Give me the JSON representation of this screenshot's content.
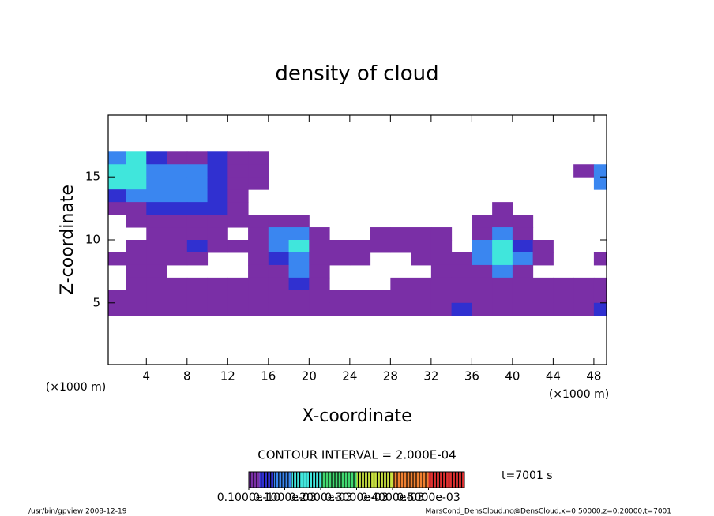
{
  "chart_data": {
    "type": "contour",
    "title": "density of cloud",
    "x_label": "X-coordinate",
    "y_label": "Z-coordinate",
    "x_unit": "(×1000 m)",
    "y_unit": "(×1000 m)",
    "contour_interval": "CONTOUR INTERVAL = 2.000E-04",
    "time_label": "t=7001 s",
    "footer_left": "/usr/bin/gpview   2008-12-19",
    "footer_right": "MarsCond_DensCloud.nc@DensCloud,x=0:50000,z=0:20000,t=7001",
    "xlim": [
      0.25,
      49.25
    ],
    "ylim": [
      0.1,
      19.9
    ],
    "xticks": [
      4,
      8,
      12,
      16,
      20,
      24,
      28,
      32,
      36,
      40,
      44,
      48
    ],
    "yticks": [
      5,
      10,
      15
    ],
    "x": [
      1,
      3,
      5,
      7,
      9,
      11,
      13,
      15,
      17,
      19,
      21,
      23,
      25,
      27,
      29,
      31,
      33,
      35,
      37,
      39,
      41,
      43,
      45,
      47,
      49
    ],
    "z": [
      16.5,
      15.5,
      14.5,
      13.5,
      12.5,
      11.5,
      10.5,
      9.5,
      8.5,
      7.5,
      6.5,
      5.5,
      4.5
    ],
    "values": [
      [
        0.0001,
        0.00015,
        6e-05,
        2e-05,
        2e-05,
        6e-05,
        2e-05,
        2e-05,
        0,
        0,
        0,
        0,
        0,
        0,
        0,
        0,
        0,
        0,
        0,
        0,
        0,
        0,
        0,
        0,
        0
      ],
      [
        0.00015,
        0.00015,
        0.0001,
        0.0001,
        0.0001,
        6e-05,
        2e-05,
        2e-05,
        0,
        0,
        0,
        0,
        0,
        0,
        0,
        0,
        0,
        0,
        0,
        0,
        0,
        0,
        0,
        2e-05,
        0.0001
      ],
      [
        0.00015,
        0.00015,
        0.0001,
        0.0001,
        0.0001,
        6e-05,
        2e-05,
        2e-05,
        0,
        0,
        0,
        0,
        0,
        0,
        0,
        0,
        0,
        0,
        0,
        0,
        0,
        0,
        0,
        0,
        0.0001
      ],
      [
        6e-05,
        0.0001,
        0.0001,
        0.0001,
        0.0001,
        6e-05,
        2e-05,
        0,
        0,
        0,
        0,
        0,
        0,
        0,
        0,
        0,
        0,
        0,
        0,
        0,
        0,
        0,
        0,
        0,
        0
      ],
      [
        2e-05,
        2e-05,
        6e-05,
        6e-05,
        6e-05,
        6e-05,
        2e-05,
        0,
        0,
        0,
        0,
        0,
        0,
        0,
        0,
        0,
        0,
        0,
        0,
        2e-05,
        0,
        0,
        0,
        0,
        0
      ],
      [
        0,
        2e-05,
        2e-05,
        2e-05,
        2e-05,
        2e-05,
        2e-05,
        2e-05,
        2e-05,
        2e-05,
        0,
        0,
        0,
        0,
        0,
        0,
        0,
        0,
        2e-05,
        2e-05,
        2e-05,
        0,
        0,
        0,
        0
      ],
      [
        0,
        0,
        2e-05,
        2e-05,
        2e-05,
        2e-05,
        0,
        2e-05,
        0.0001,
        0.0001,
        2e-05,
        0,
        0,
        2e-05,
        2e-05,
        2e-05,
        2e-05,
        0,
        2e-05,
        0.0001,
        2e-05,
        0,
        0,
        0,
        0
      ],
      [
        0,
        2e-05,
        2e-05,
        2e-05,
        6e-05,
        2e-05,
        2e-05,
        2e-05,
        0.0001,
        0.00015,
        2e-05,
        2e-05,
        2e-05,
        2e-05,
        2e-05,
        2e-05,
        2e-05,
        0,
        0.0001,
        0.00015,
        6e-05,
        2e-05,
        0,
        0,
        0
      ],
      [
        2e-05,
        2e-05,
        2e-05,
        2e-05,
        2e-05,
        0,
        0,
        2e-05,
        6e-05,
        0.0001,
        2e-05,
        2e-05,
        2e-05,
        0,
        0,
        2e-05,
        2e-05,
        2e-05,
        0.0001,
        0.00015,
        0.0001,
        2e-05,
        0,
        0,
        2e-05
      ],
      [
        0,
        2e-05,
        2e-05,
        0,
        0,
        0,
        0,
        2e-05,
        2e-05,
        0.0001,
        2e-05,
        0,
        0,
        0,
        0,
        0,
        2e-05,
        2e-05,
        2e-05,
        0.0001,
        2e-05,
        0,
        0,
        0,
        0
      ],
      [
        0,
        2e-05,
        2e-05,
        2e-05,
        2e-05,
        2e-05,
        2e-05,
        2e-05,
        2e-05,
        6e-05,
        2e-05,
        0,
        0,
        0,
        2e-05,
        2e-05,
        2e-05,
        2e-05,
        2e-05,
        2e-05,
        2e-05,
        2e-05,
        2e-05,
        2e-05,
        2e-05
      ],
      [
        2e-05,
        2e-05,
        2e-05,
        2e-05,
        2e-05,
        2e-05,
        2e-05,
        2e-05,
        2e-05,
        2e-05,
        2e-05,
        2e-05,
        2e-05,
        2e-05,
        2e-05,
        2e-05,
        2e-05,
        2e-05,
        2e-05,
        2e-05,
        2e-05,
        2e-05,
        2e-05,
        2e-05,
        2e-05
      ],
      [
        2e-05,
        2e-05,
        2e-05,
        2e-05,
        2e-05,
        2e-05,
        2e-05,
        2e-05,
        2e-05,
        2e-05,
        2e-05,
        2e-05,
        2e-05,
        2e-05,
        2e-05,
        2e-05,
        2e-05,
        6e-05,
        2e-05,
        2e-05,
        2e-05,
        2e-05,
        2e-05,
        2e-05,
        6e-05
      ]
    ],
    "colorbar": {
      "bounds": [
        0,
        1e-11,
        3e-05,
        7e-05,
        0.00012,
        0.0002,
        0.0003,
        0.0004,
        0.0005,
        0.0006
      ],
      "colors": [
        "#ffffff",
        "#7a2fa6",
        "#3030d0",
        "#3a86f0",
        "#40e6dc",
        "#40d870",
        "#c8e040",
        "#f08030",
        "#e03030"
      ],
      "ticks": [
        {
          "value": 1e-11,
          "label": "0.1000e-10"
        },
        {
          "value": 0.0001,
          "label": "0.1000e-03"
        },
        {
          "value": 0.0002,
          "label": "0.2000e-03"
        },
        {
          "value": 0.0003,
          "label": "0.3000e-03"
        },
        {
          "value": 0.0004,
          "label": "0.4000e-03"
        },
        {
          "value": 0.0005,
          "label": "0.5000e-03"
        }
      ]
    }
  }
}
